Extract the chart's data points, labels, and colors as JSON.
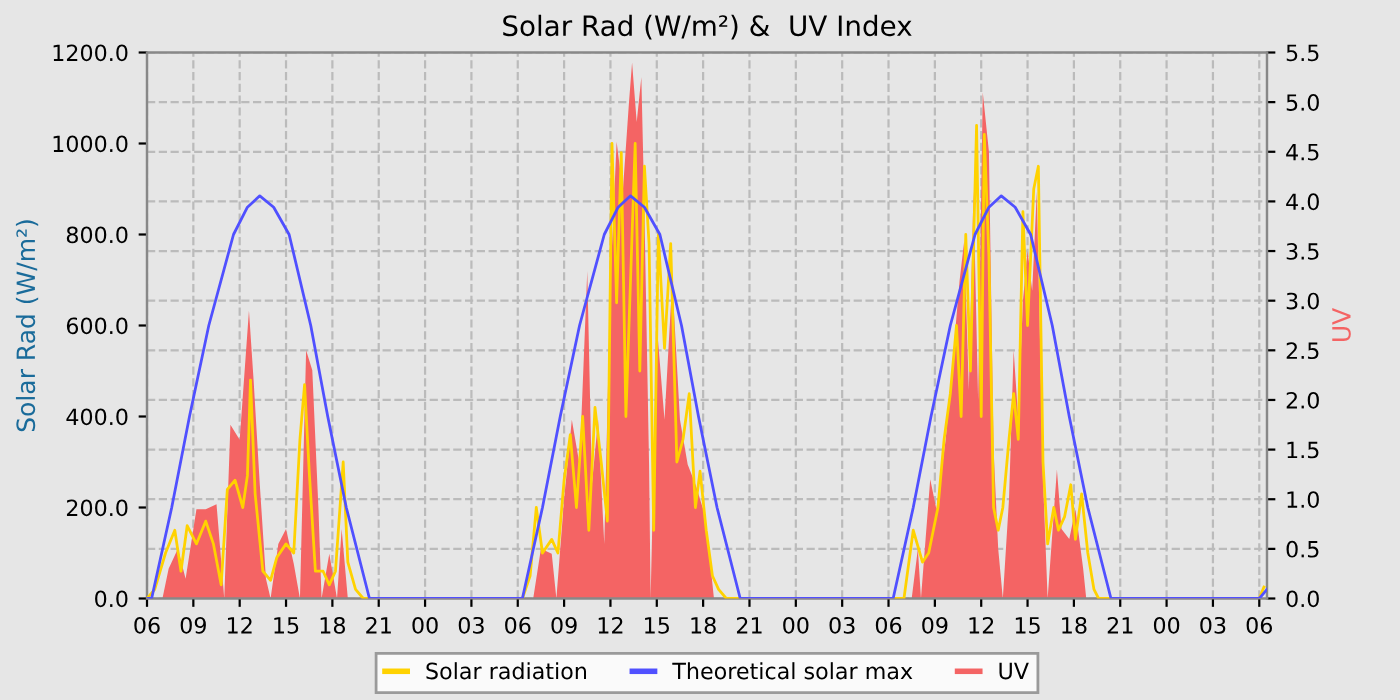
{
  "chart_data": {
    "type": "line",
    "title": "Solar Rad (W/m²) &  UV Index",
    "ylabel": "Solar Rad (W/m²)",
    "y2label": "UV",
    "xlim": [
      6,
      78.5
    ],
    "xticks": [
      {
        "value": 6,
        "label": "06"
      },
      {
        "value": 9,
        "label": "09"
      },
      {
        "value": 12,
        "label": "12"
      },
      {
        "value": 15,
        "label": "15"
      },
      {
        "value": 18,
        "label": "18"
      },
      {
        "value": 21,
        "label": "21"
      },
      {
        "value": 24,
        "label": "00"
      },
      {
        "value": 27,
        "label": "03"
      },
      {
        "value": 30,
        "label": "06"
      },
      {
        "value": 33,
        "label": "09"
      },
      {
        "value": 36,
        "label": "12"
      },
      {
        "value": 39,
        "label": "15"
      },
      {
        "value": 42,
        "label": "18"
      },
      {
        "value": 45,
        "label": "21"
      },
      {
        "value": 48,
        "label": "00"
      },
      {
        "value": 51,
        "label": "03"
      },
      {
        "value": 54,
        "label": "06"
      },
      {
        "value": 57,
        "label": "09"
      },
      {
        "value": 60,
        "label": "12"
      },
      {
        "value": 63,
        "label": "15"
      },
      {
        "value": 66,
        "label": "18"
      },
      {
        "value": 69,
        "label": "21"
      },
      {
        "value": 72,
        "label": "00"
      },
      {
        "value": 75,
        "label": "03"
      },
      {
        "value": 78,
        "label": "06"
      }
    ],
    "ylim": [
      0,
      1200
    ],
    "yticks": [
      {
        "value": 0,
        "label": "0.0"
      },
      {
        "value": 200,
        "label": "200.0"
      },
      {
        "value": 400,
        "label": "400.0"
      },
      {
        "value": 600,
        "label": "600.0"
      },
      {
        "value": 800,
        "label": "800.0"
      },
      {
        "value": 1000,
        "label": "1000.0"
      },
      {
        "value": 1200,
        "label": "1200.0"
      }
    ],
    "y2lim": [
      0,
      5.5
    ],
    "y2ticks": [
      {
        "value": 0,
        "label": "0.0"
      },
      {
        "value": 0.5,
        "label": "0.5"
      },
      {
        "value": 1,
        "label": "1.0"
      },
      {
        "value": 1.5,
        "label": "1.5"
      },
      {
        "value": 2,
        "label": "2.0"
      },
      {
        "value": 2.5,
        "label": "2.5"
      },
      {
        "value": 3,
        "label": "3.0"
      },
      {
        "value": 3.5,
        "label": "3.5"
      },
      {
        "value": 4,
        "label": "4.0"
      },
      {
        "value": 4.5,
        "label": "4.5"
      },
      {
        "value": 5,
        "label": "5.0"
      },
      {
        "value": 5.5,
        "label": "5.5"
      }
    ],
    "grid": true,
    "legend": "bottom",
    "series": [
      {
        "name": "UV",
        "type": "area",
        "axis": "y2",
        "color": "#f46464",
        "x": [
          6,
          7.0,
          7.4,
          8.0,
          8.5,
          9.2,
          9.8,
          10.5,
          11.0,
          11.4,
          12.0,
          12.6,
          12.9,
          13.3,
          13.7,
          14.0,
          14.5,
          15.0,
          15.5,
          15.9,
          16.3,
          16.7,
          17.1,
          17.3,
          17.8,
          18.3,
          18.6,
          19.0,
          31.0,
          31.5,
          32.2,
          32.5,
          33.0,
          33.5,
          34.0,
          34.5,
          34.8,
          35.2,
          35.6,
          36.0,
          36.4,
          36.8,
          37.2,
          37.4,
          37.7,
          38.0,
          38.2,
          38.5,
          38.6,
          39.0,
          39.5,
          40.0,
          40.5,
          41.0,
          41.5,
          42.0,
          42.4,
          42.7,
          55.5,
          55.9,
          56.1,
          56.4,
          56.7,
          57.1,
          57.7,
          58.1,
          58.6,
          58.9,
          59.2,
          59.5,
          59.8,
          60.1,
          60.5,
          60.8,
          61.1,
          61.4,
          61.8,
          62.1,
          62.4,
          62.7,
          63.0,
          63.3,
          63.6,
          64.0,
          64.3,
          64.9,
          65.2,
          65.7,
          66.1,
          66.6,
          66.8,
          78.5
        ],
        "values": [
          0,
          0,
          0.3,
          0.5,
          0.2,
          0.9,
          0.9,
          0.95,
          0,
          1.75,
          1.6,
          2.9,
          2.2,
          1.15,
          0.2,
          0,
          0.55,
          0.7,
          0.35,
          0,
          2.5,
          2.3,
          0.9,
          0,
          0.45,
          0,
          0.7,
          0,
          0,
          0.5,
          0.45,
          0,
          1.0,
          1.8,
          1.35,
          3.3,
          1.15,
          1.8,
          0.55,
          3.2,
          4.6,
          4.1,
          5.0,
          5.4,
          4.8,
          5.25,
          3.9,
          1.35,
          0,
          2.75,
          1.8,
          3.2,
          1.8,
          1.35,
          1.15,
          0.9,
          0.45,
          0,
          0,
          0.5,
          0,
          0.6,
          1.2,
          0.9,
          1.6,
          2.3,
          3.2,
          3.6,
          2.1,
          4.1,
          2.0,
          5.1,
          4.5,
          1.5,
          0.5,
          0,
          1.0,
          2.5,
          1.8,
          3.0,
          3.5,
          3.1,
          4.1,
          1.2,
          0,
          1.3,
          0.7,
          0.6,
          0.9,
          0.3,
          0,
          0
        ]
      },
      {
        "name": "Solar radiation",
        "color": "#ffd200",
        "x": [
          6,
          6.5,
          7.2,
          7.8,
          8.2,
          8.6,
          9.2,
          9.8,
          10.3,
          10.8,
          11.2,
          11.7,
          12.2,
          12.5,
          12.7,
          13.0,
          13.5,
          14.0,
          14.4,
          15.0,
          15.5,
          15.9,
          16.2,
          16.5,
          16.9,
          17.4,
          17.8,
          18.2,
          18.7,
          19.0,
          19.5,
          20.0,
          30.3,
          30.8,
          31.2,
          31.6,
          32.2,
          32.6,
          33.0,
          33.4,
          33.8,
          34.2,
          34.6,
          35.0,
          35.4,
          35.8,
          36.1,
          36.4,
          36.7,
          37.0,
          37.3,
          37.6,
          37.9,
          38.2,
          38.5,
          38.8,
          39.1,
          39.5,
          39.9,
          40.3,
          40.7,
          41.1,
          41.5,
          41.8,
          42.2,
          42.6,
          43.0,
          43.5,
          55.0,
          55.6,
          56.2,
          56.6,
          57.2,
          57.6,
          58.0,
          58.4,
          58.7,
          59.0,
          59.3,
          59.7,
          60.0,
          60.2,
          60.5,
          60.8,
          61.1,
          61.4,
          61.8,
          62.1,
          62.4,
          62.7,
          63.0,
          63.4,
          63.7,
          64.0,
          64.3,
          64.7,
          65.0,
          65.4,
          65.8,
          66.1,
          66.5,
          66.9,
          67.3,
          67.6,
          78.0,
          78.3
        ],
        "values": [
          0,
          20,
          100,
          150,
          60,
          160,
          120,
          170,
          120,
          30,
          240,
          260,
          200,
          270,
          480,
          230,
          60,
          40,
          90,
          120,
          100,
          350,
          470,
          280,
          60,
          60,
          30,
          60,
          300,
          80,
          20,
          0,
          0,
          50,
          200,
          100,
          130,
          100,
          260,
          360,
          200,
          400,
          150,
          420,
          300,
          170,
          1000,
          650,
          980,
          400,
          700,
          1000,
          500,
          950,
          780,
          150,
          800,
          550,
          780,
          300,
          350,
          450,
          200,
          280,
          150,
          50,
          20,
          0,
          0,
          150,
          80,
          100,
          200,
          350,
          450,
          600,
          400,
          800,
          500,
          1040,
          400,
          1020,
          750,
          200,
          150,
          200,
          350,
          450,
          350,
          850,
          600,
          900,
          950,
          300,
          120,
          200,
          150,
          180,
          250,
          130,
          230,
          100,
          20,
          0,
          0,
          25
        ]
      },
      {
        "name": "Theoretical solar max",
        "color": "#5050ff",
        "x": [
          6,
          6.3,
          7.6,
          8.75,
          10.0,
          11.6,
          12.5,
          13.3,
          14.2,
          15.2,
          16.6,
          17.7,
          18.9,
          20.4,
          30.3,
          31.6,
          32.75,
          34.0,
          35.6,
          36.5,
          37.3,
          38.2,
          39.2,
          40.6,
          41.7,
          42.9,
          44.4,
          54.3,
          55.6,
          56.75,
          58.0,
          59.6,
          60.5,
          61.3,
          62.2,
          63.2,
          64.6,
          65.7,
          66.9,
          68.4,
          78.0,
          78.5
        ],
        "values": [
          0,
          0,
          200,
          400,
          600,
          800,
          860,
          885,
          860,
          800,
          600,
          400,
          200,
          0,
          0,
          200,
          400,
          600,
          800,
          860,
          885,
          860,
          800,
          600,
          400,
          200,
          0,
          0,
          200,
          400,
          600,
          800,
          860,
          885,
          860,
          800,
          600,
          400,
          200,
          0,
          0,
          20
        ]
      }
    ]
  }
}
